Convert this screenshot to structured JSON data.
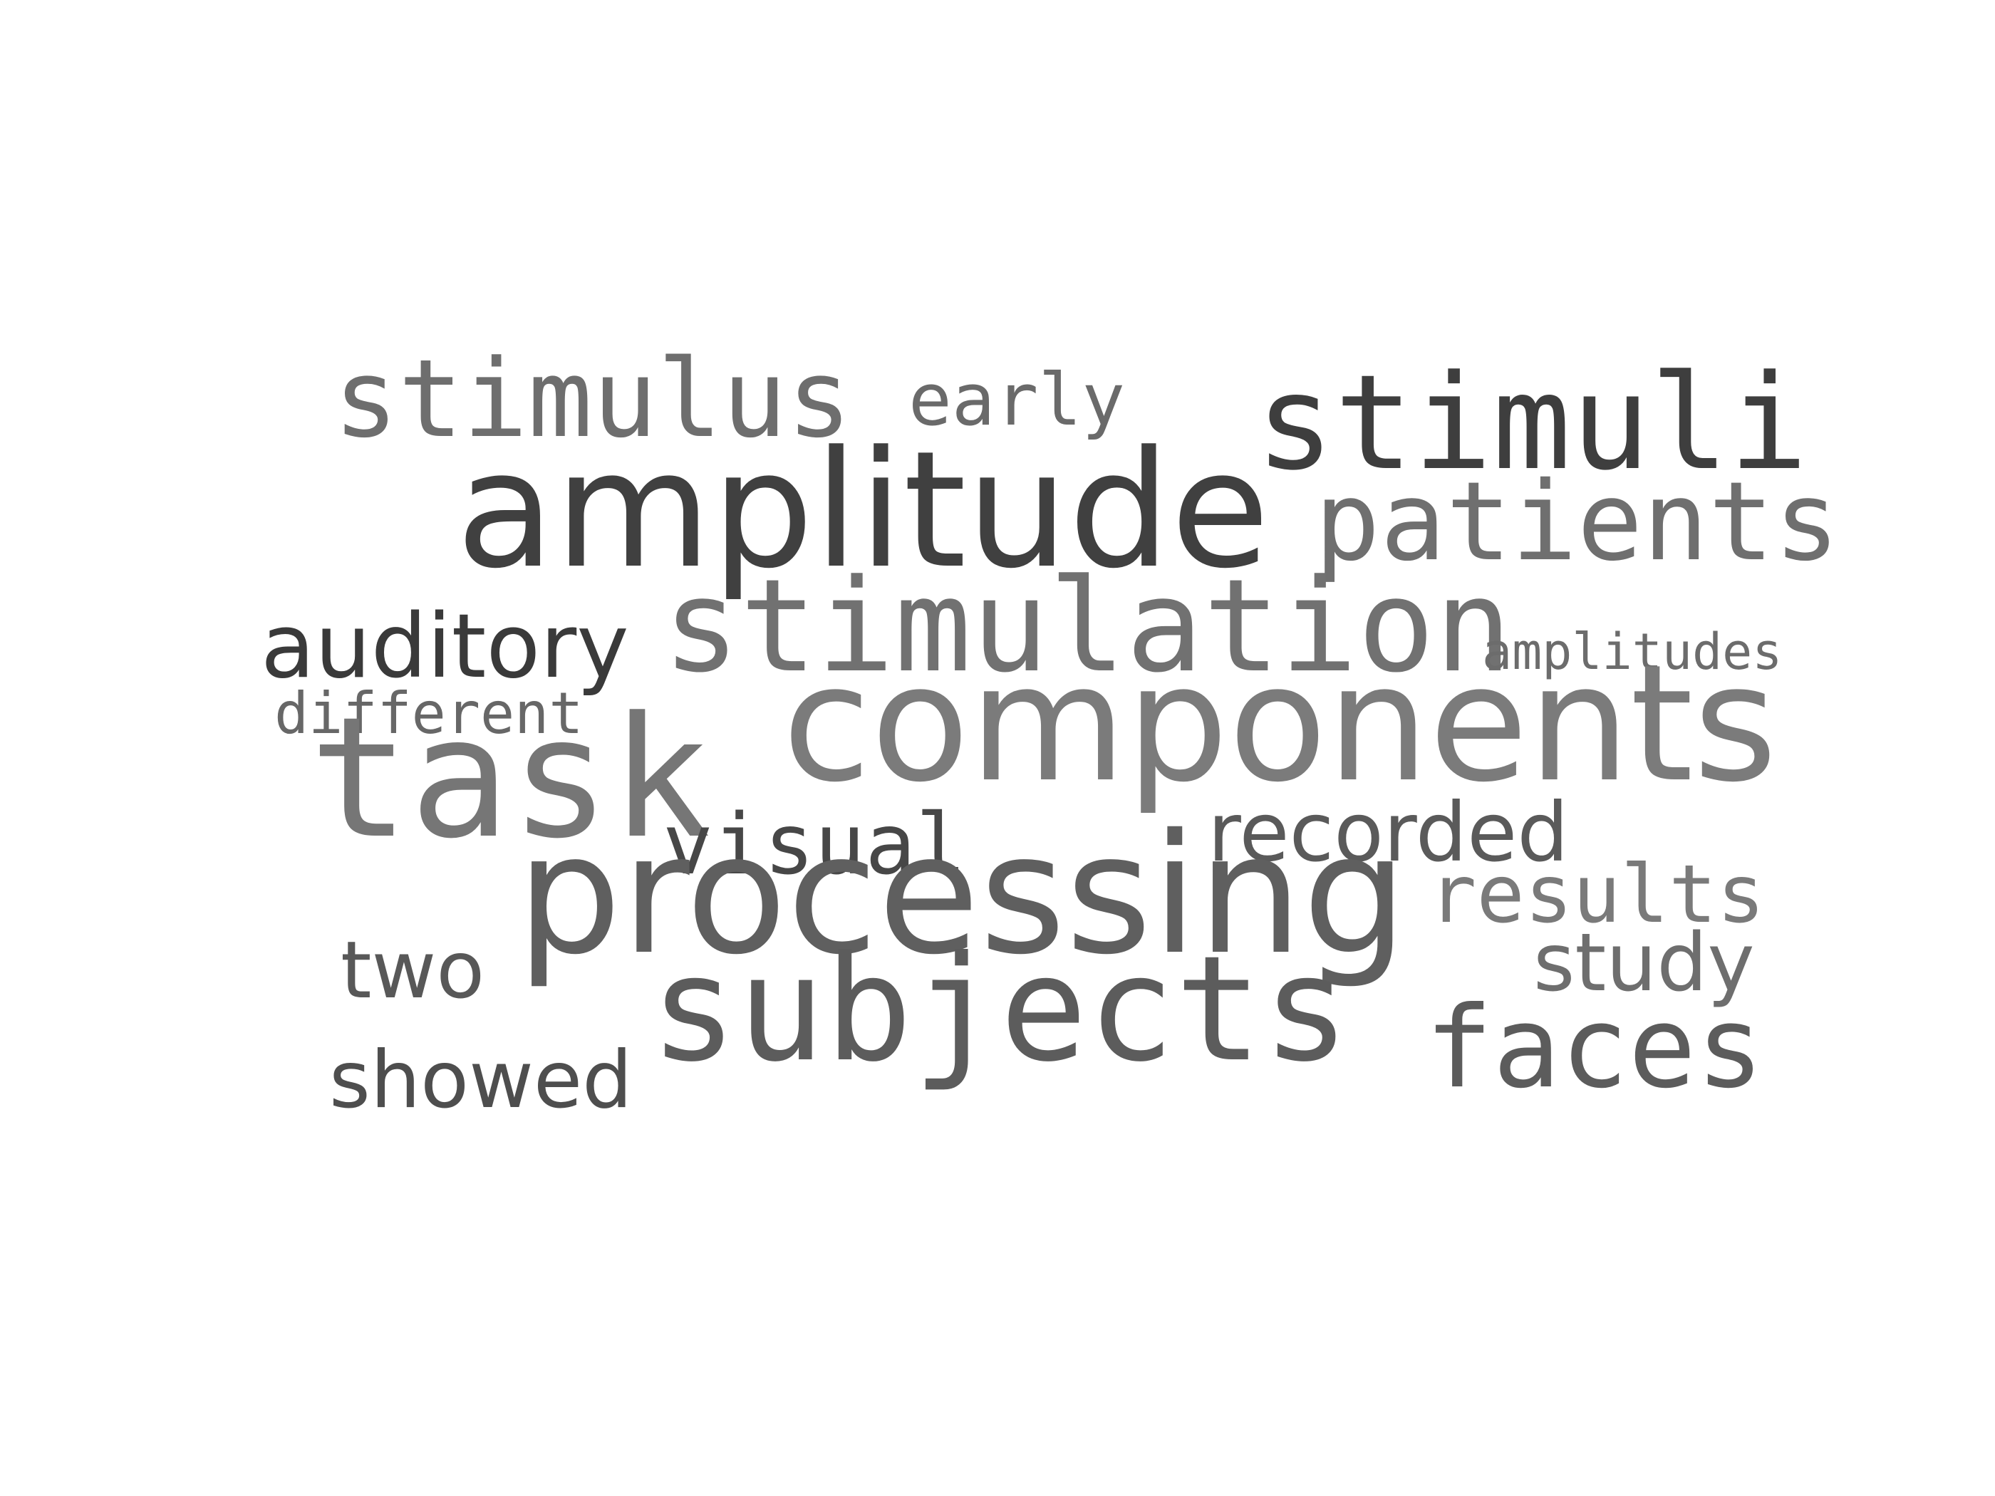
{
  "words": [
    {
      "key": "stimulus",
      "text": "stimulus",
      "color": "#6e6e6e"
    },
    {
      "key": "early",
      "text": "early",
      "color": "#6a6a6a"
    },
    {
      "key": "stimuli",
      "text": "stimuli",
      "color": "#3e3e3e"
    },
    {
      "key": "amplitude",
      "text": "amplitude",
      "color": "#404040"
    },
    {
      "key": "patients",
      "text": "patients",
      "color": "#6f6f6f"
    },
    {
      "key": "auditory",
      "text": "auditory",
      "color": "#3a3a3a"
    },
    {
      "key": "stimulation",
      "text": "stimulation",
      "color": "#717171"
    },
    {
      "key": "amplitudes",
      "text": "amplitudes",
      "color": "#6c6c6c"
    },
    {
      "key": "different",
      "text": "different",
      "color": "#676767"
    },
    {
      "key": "components",
      "text": "components",
      "color": "#7b7b7b"
    },
    {
      "key": "task",
      "text": "task",
      "color": "#767676"
    },
    {
      "key": "visual",
      "text": "visual",
      "color": "#474747"
    },
    {
      "key": "recorded",
      "text": "recorded",
      "color": "#5a5a5a"
    },
    {
      "key": "results",
      "text": "results",
      "color": "#7a7a7a"
    },
    {
      "key": "processing",
      "text": "processing",
      "color": "#5f5f5f"
    },
    {
      "key": "two",
      "text": "two",
      "color": "#585858"
    },
    {
      "key": "study",
      "text": "study",
      "color": "#6e6e6e"
    },
    {
      "key": "subjects",
      "text": "subjects",
      "color": "#5c5c5c"
    },
    {
      "key": "faces",
      "text": "faces",
      "color": "#5c5c5c"
    },
    {
      "key": "showed",
      "text": "showed",
      "color": "#4e4e4e"
    }
  ]
}
